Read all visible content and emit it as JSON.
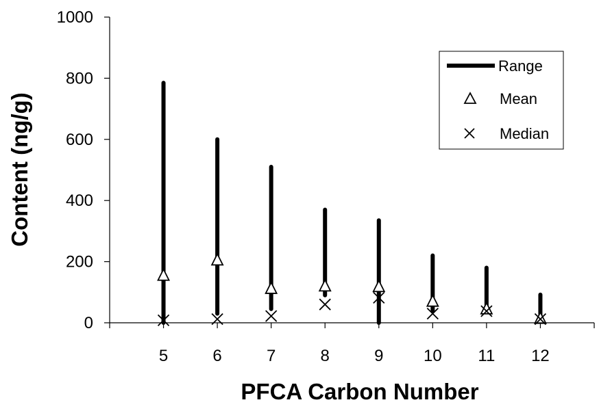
{
  "chart_data": {
    "type": "range",
    "xlabel": "PFCA Carbon Number",
    "ylabel": "Content (ng/g)",
    "ylim": [
      0,
      1000
    ],
    "yticks": [
      0,
      200,
      400,
      600,
      800,
      1000
    ],
    "xlim": [
      4,
      13
    ],
    "xticks": [
      5,
      6,
      7,
      8,
      9,
      10,
      11,
      12
    ],
    "legend_position": "top-right",
    "legend": {
      "range": "Range",
      "mean": "Mean",
      "median": "Median"
    },
    "colors": {
      "series": "#000000"
    },
    "points": [
      {
        "carbon": 5,
        "range": [
          0,
          785
        ],
        "mean": 155,
        "median": 8
      },
      {
        "carbon": 6,
        "range": [
          30,
          600
        ],
        "mean": 205,
        "median": 12
      },
      {
        "carbon": 7,
        "range": [
          45,
          510
        ],
        "mean": 112,
        "median": 22
      },
      {
        "carbon": 8,
        "range": [
          90,
          370
        ],
        "mean": 120,
        "median": 60
      },
      {
        "carbon": 9,
        "range": [
          0,
          335
        ],
        "mean": 118,
        "median": 82
      },
      {
        "carbon": 10,
        "range": [
          40,
          220
        ],
        "mean": 70,
        "median": 30
      },
      {
        "carbon": 11,
        "range": [
          50,
          180
        ],
        "mean": 45,
        "median": 38
      },
      {
        "carbon": 12,
        "range": [
          25,
          92
        ],
        "mean": 14,
        "median": 12
      }
    ]
  }
}
